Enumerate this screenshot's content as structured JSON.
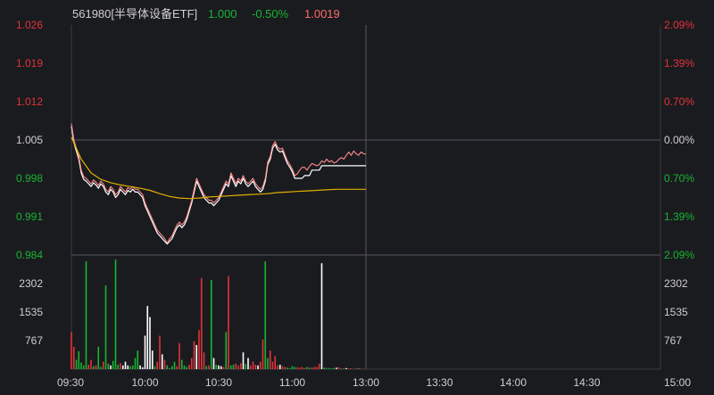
{
  "header": {
    "code_name": "561980[半导体设备ETF]",
    "price_a": "1.000",
    "change_pct": "-0.50%",
    "price_b": "1.0019"
  },
  "colors": {
    "background": "#1a1b1f",
    "grid": "#3a3b40",
    "axis_text_up": "#e0343a",
    "axis_text_down": "#18b532",
    "axis_text_neutral": "#d0d0d0",
    "price_line": "#ffffff",
    "price_line_overlay": "#ff8c8c",
    "avg_line": "#e0b000",
    "vol_up": "#e0343a",
    "vol_down": "#18b532",
    "vol_flat": "#ffffff"
  },
  "chart_data": {
    "type": "line",
    "y_left_ticks": [
      "1.026",
      "1.019",
      "1.012",
      "1.005",
      "0.998",
      "0.991",
      "0.984"
    ],
    "y_right_ticks": [
      "2.09%",
      "1.39%",
      "0.70%",
      "0.00%",
      "0.70%",
      "1.39%",
      "2.09%"
    ],
    "y_range": [
      0.984,
      1.026
    ],
    "reference_price": 1.005,
    "volume_ticks": [
      "2302",
      "1535",
      "767"
    ],
    "volume_range": [
      0,
      3070
    ],
    "x_ticks": [
      "09:30",
      "10:00",
      "10:30",
      "11:00",
      "13:00",
      "13:30",
      "14:00",
      "14:30",
      "15:00"
    ],
    "session_minutes": 240,
    "series": [
      {
        "role": "price",
        "x": [
          0,
          1,
          2,
          3,
          4,
          5,
          6,
          7,
          8,
          9,
          10,
          11,
          12,
          13,
          14,
          15,
          16,
          17,
          18,
          19,
          20,
          21,
          22,
          23,
          24,
          25,
          26,
          27,
          28,
          29,
          30,
          31,
          32,
          33,
          34,
          35,
          36,
          37,
          38,
          39,
          40,
          41,
          42,
          43,
          44,
          45,
          46,
          47,
          48,
          49,
          50,
          51,
          52,
          53,
          54,
          55,
          56,
          57,
          58,
          59,
          60,
          61,
          62,
          63,
          64,
          65,
          66,
          67,
          68,
          69,
          70,
          71,
          72,
          73,
          74,
          75,
          76,
          77,
          78,
          79,
          80,
          81,
          82,
          83,
          84,
          85,
          86,
          87,
          88,
          89,
          90,
          91,
          92,
          93,
          94,
          95,
          96,
          97,
          98,
          99,
          100,
          101,
          102,
          103,
          104,
          105,
          106,
          107,
          108,
          109,
          110,
          111,
          112,
          113,
          114,
          115,
          116,
          117,
          118,
          119,
          120
        ],
        "values": [
          1.0075,
          1.0045,
          1.003,
          1.0015,
          0.999,
          0.9978,
          0.9975,
          0.997,
          0.9965,
          0.9972,
          0.9968,
          0.9962,
          0.997,
          0.9965,
          0.9955,
          0.995,
          0.996,
          0.9955,
          0.9945,
          0.995,
          0.996,
          0.9955,
          0.995,
          0.9958,
          0.9955,
          0.996,
          0.9955,
          0.9955,
          0.995,
          0.9945,
          0.993,
          0.992,
          0.991,
          0.99,
          0.989,
          0.988,
          0.9875,
          0.987,
          0.9865,
          0.986,
          0.9865,
          0.987,
          0.988,
          0.989,
          0.9895,
          0.989,
          0.9895,
          0.9905,
          0.992,
          0.9935,
          0.9955,
          0.9975,
          0.9965,
          0.9955,
          0.9945,
          0.994,
          0.9935,
          0.9935,
          0.993,
          0.9935,
          0.994,
          0.995,
          0.996,
          0.997,
          0.9965,
          0.9985,
          0.9975,
          0.9965,
          0.9975,
          0.997,
          0.998,
          0.997,
          0.9965,
          0.997,
          0.9975,
          0.9965,
          0.996,
          0.9955,
          0.996,
          0.9975,
          1.0005,
          1.0015,
          1.0035,
          1.0042,
          1.0032,
          1.0028,
          1.003,
          1.0018,
          1.0007,
          1.0,
          0.9992,
          0.998,
          0.998,
          0.998,
          0.998,
          0.9985,
          0.9985,
          0.9985,
          0.9995,
          0.9995,
          0.9995,
          0.9995,
          1.0003,
          1.0003,
          1.0003,
          1.0003,
          1.0003,
          1.0003,
          1.0003,
          1.0003,
          1.0003,
          1.0003,
          1.0003,
          1.0003,
          1.0003,
          1.0003,
          1.0003,
          1.0003,
          1.0003,
          1.0003,
          1.0003
        ]
      },
      {
        "role": "price_overlay",
        "x": [
          0,
          1,
          2,
          3,
          4,
          5,
          6,
          7,
          8,
          9,
          10,
          11,
          12,
          13,
          14,
          15,
          16,
          17,
          18,
          19,
          20,
          21,
          22,
          23,
          24,
          25,
          26,
          27,
          28,
          29,
          30,
          31,
          32,
          33,
          34,
          35,
          36,
          37,
          38,
          39,
          40,
          41,
          42,
          43,
          44,
          45,
          46,
          47,
          48,
          49,
          50,
          51,
          52,
          53,
          54,
          55,
          56,
          57,
          58,
          59,
          60,
          61,
          62,
          63,
          64,
          65,
          66,
          67,
          68,
          69,
          70,
          71,
          72,
          73,
          74,
          75,
          76,
          77,
          78,
          79,
          80,
          81,
          82,
          83,
          84,
          85,
          86,
          87,
          88,
          89,
          90,
          91,
          92,
          93,
          94,
          95,
          96,
          97,
          98,
          99,
          100,
          101,
          102,
          103,
          104,
          105,
          106,
          107,
          108,
          109,
          110,
          111,
          112,
          113,
          114,
          115,
          116,
          117,
          118,
          119,
          120
        ],
        "values": [
          1.008,
          1.005,
          1.0035,
          1.002,
          0.9995,
          0.9983,
          0.998,
          0.9975,
          0.997,
          0.9977,
          0.9973,
          0.9967,
          0.9975,
          0.997,
          0.996,
          0.9955,
          0.9965,
          0.996,
          0.995,
          0.9955,
          0.9965,
          0.996,
          0.9955,
          0.9963,
          0.996,
          0.9965,
          0.996,
          0.996,
          0.9955,
          0.995,
          0.9935,
          0.9925,
          0.9915,
          0.9905,
          0.9895,
          0.9885,
          0.988,
          0.9875,
          0.987,
          0.9862,
          0.987,
          0.9875,
          0.9885,
          0.9895,
          0.99,
          0.9895,
          0.99,
          0.991,
          0.9925,
          0.994,
          0.996,
          0.998,
          0.997,
          0.996,
          0.995,
          0.9945,
          0.994,
          0.994,
          0.9935,
          0.994,
          0.9945,
          0.9955,
          0.9965,
          0.9975,
          0.997,
          0.999,
          0.998,
          0.997,
          0.998,
          0.9975,
          0.9985,
          0.9975,
          0.997,
          0.9975,
          0.998,
          0.997,
          0.9965,
          0.996,
          0.9965,
          0.998,
          1.001,
          1.002,
          1.004,
          1.0047,
          1.0037,
          1.0033,
          1.0035,
          1.0023,
          1.0012,
          1.0005,
          0.9997,
          0.9985,
          0.9988,
          0.9995,
          1.0,
          1.0,
          0.9995,
          1.0002,
          1.0007,
          1.0005,
          1.0003,
          1.0005,
          1.0012,
          1.0009,
          1.0015,
          1.001,
          1.0012,
          1.0008,
          1.001,
          1.0015,
          1.0018,
          1.0015,
          1.0022,
          1.0028,
          1.0022,
          1.003,
          1.0025,
          1.0022,
          1.0028,
          1.0025,
          1.0024
        ]
      },
      {
        "role": "average",
        "x": [
          0,
          4,
          8,
          12,
          16,
          20,
          24,
          28,
          32,
          36,
          40,
          44,
          48,
          52,
          56,
          60,
          64,
          68,
          72,
          76,
          80,
          84,
          88,
          92,
          96,
          100,
          104,
          108,
          112,
          116,
          120
        ],
        "values": [
          1.0055,
          1.0015,
          0.999,
          0.9978,
          0.9972,
          0.9968,
          0.9965,
          0.9962,
          0.9958,
          0.9952,
          0.9947,
          0.9944,
          0.9943,
          0.9944,
          0.9946,
          0.9947,
          0.9948,
          0.9949,
          0.995,
          0.9951,
          0.9952,
          0.9954,
          0.9955,
          0.9956,
          0.9957,
          0.9958,
          0.9959,
          0.996,
          0.996,
          0.996,
          0.996
        ]
      }
    ],
    "volume": {
      "x": [
        0,
        1,
        2,
        3,
        4,
        5,
        6,
        7,
        8,
        9,
        10,
        11,
        12,
        13,
        14,
        15,
        16,
        17,
        18,
        19,
        20,
        21,
        22,
        23,
        24,
        25,
        26,
        27,
        28,
        29,
        30,
        31,
        32,
        33,
        34,
        35,
        36,
        37,
        38,
        39,
        40,
        41,
        42,
        43,
        44,
        45,
        46,
        47,
        48,
        49,
        50,
        51,
        52,
        53,
        54,
        55,
        56,
        57,
        58,
        59,
        60,
        61,
        62,
        63,
        64,
        65,
        66,
        67,
        68,
        69,
        70,
        71,
        72,
        73,
        74,
        75,
        76,
        77,
        78,
        79,
        80,
        81,
        82,
        83,
        84,
        85,
        86,
        87,
        88,
        89,
        90,
        91,
        92,
        93,
        94,
        95,
        96,
        97,
        98,
        99,
        100,
        101,
        102,
        103,
        104,
        105,
        106,
        107,
        108,
        109,
        110,
        111,
        112,
        113,
        114,
        115,
        116,
        117,
        118,
        119,
        120
      ],
      "values": [
        1000,
        600,
        250,
        480,
        180,
        100,
        2900,
        120,
        250,
        80,
        100,
        600,
        60,
        200,
        2250,
        150,
        100,
        220,
        2950,
        120,
        160,
        100,
        200,
        100,
        80,
        100,
        300,
        500,
        100,
        50,
        900,
        1700,
        1400,
        500,
        80,
        200,
        900,
        400,
        250,
        100,
        30,
        80,
        200,
        80,
        700,
        250,
        100,
        60,
        120,
        300,
        750,
        650,
        1050,
        2450,
        450,
        80,
        100,
        2400,
        300,
        120,
        100,
        80,
        60,
        1000,
        2500,
        100,
        120,
        150,
        100,
        160,
        450,
        140,
        300,
        100,
        200,
        120,
        100,
        200,
        800,
        2900,
        300,
        500,
        200,
        350,
        100,
        120,
        80,
        60,
        40,
        30,
        80,
        60,
        50,
        40,
        60,
        30,
        60,
        40,
        40,
        60,
        60,
        150,
        2850,
        40,
        30,
        30,
        20,
        30,
        40,
        50,
        20,
        20,
        30,
        20,
        20,
        10,
        20,
        10,
        10,
        10,
        10
      ],
      "direction": [
        "up",
        "up",
        "down",
        "down",
        "down",
        "down",
        "down",
        "up",
        "up",
        "down",
        "up",
        "down",
        "down",
        "up",
        "down",
        "down",
        "flat",
        "down",
        "down",
        "down",
        "up",
        "flat",
        "flat",
        "flat",
        "down",
        "down",
        "down",
        "down",
        "flat",
        "flat",
        "flat",
        "flat",
        "flat",
        "flat",
        "down",
        "up",
        "up",
        "flat",
        "up",
        "down",
        "down",
        "down",
        "down",
        "up",
        "up",
        "down",
        "down",
        "down",
        "up",
        "up",
        "up",
        "flat",
        "up",
        "up",
        "up",
        "down",
        "up",
        "down",
        "flat",
        "down",
        "flat",
        "flat",
        "up",
        "down",
        "up",
        "down",
        "down",
        "up",
        "up",
        "up",
        "flat",
        "down",
        "flat",
        "up",
        "up",
        "up",
        "flat",
        "up",
        "up",
        "down",
        "down",
        "up",
        "up",
        "up",
        "up",
        "flat",
        "up",
        "up",
        "down",
        "down",
        "down",
        "down",
        "up",
        "up",
        "up",
        "up",
        "down",
        "down",
        "up",
        "up",
        "up",
        "up",
        "flat",
        "down",
        "down",
        "down",
        "down",
        "down",
        "flat",
        "up",
        "up",
        "down",
        "flat",
        "up",
        "up",
        "down",
        "up",
        "flat",
        "up",
        "up",
        "up"
      ]
    }
  }
}
